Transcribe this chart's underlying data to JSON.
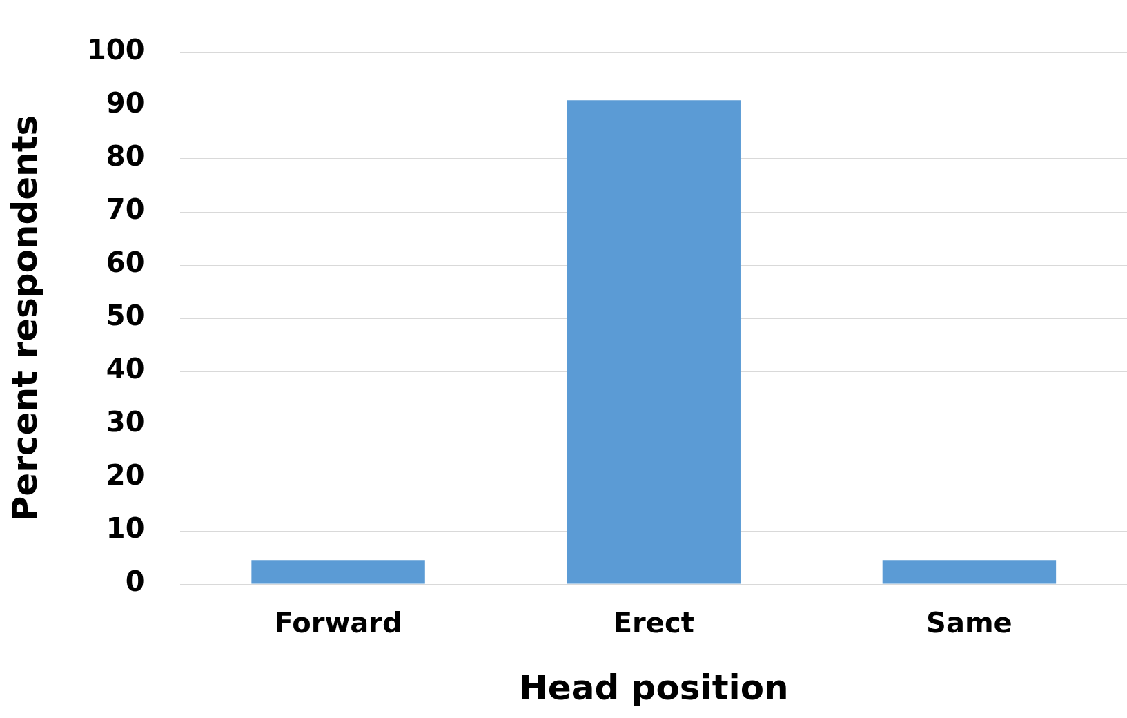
{
  "chart_data": {
    "type": "bar",
    "xlabel": "Head position",
    "ylabel": "Percent respondents",
    "categories": [
      "Forward",
      "Erect",
      "Same"
    ],
    "values": [
      4.5,
      91,
      4.5
    ],
    "color": "#5b9bd5",
    "ylim": [
      0,
      100
    ],
    "yticks": [
      0,
      10,
      20,
      30,
      40,
      50,
      60,
      70,
      80,
      90,
      100
    ],
    "grid": "y",
    "legend": false
  }
}
